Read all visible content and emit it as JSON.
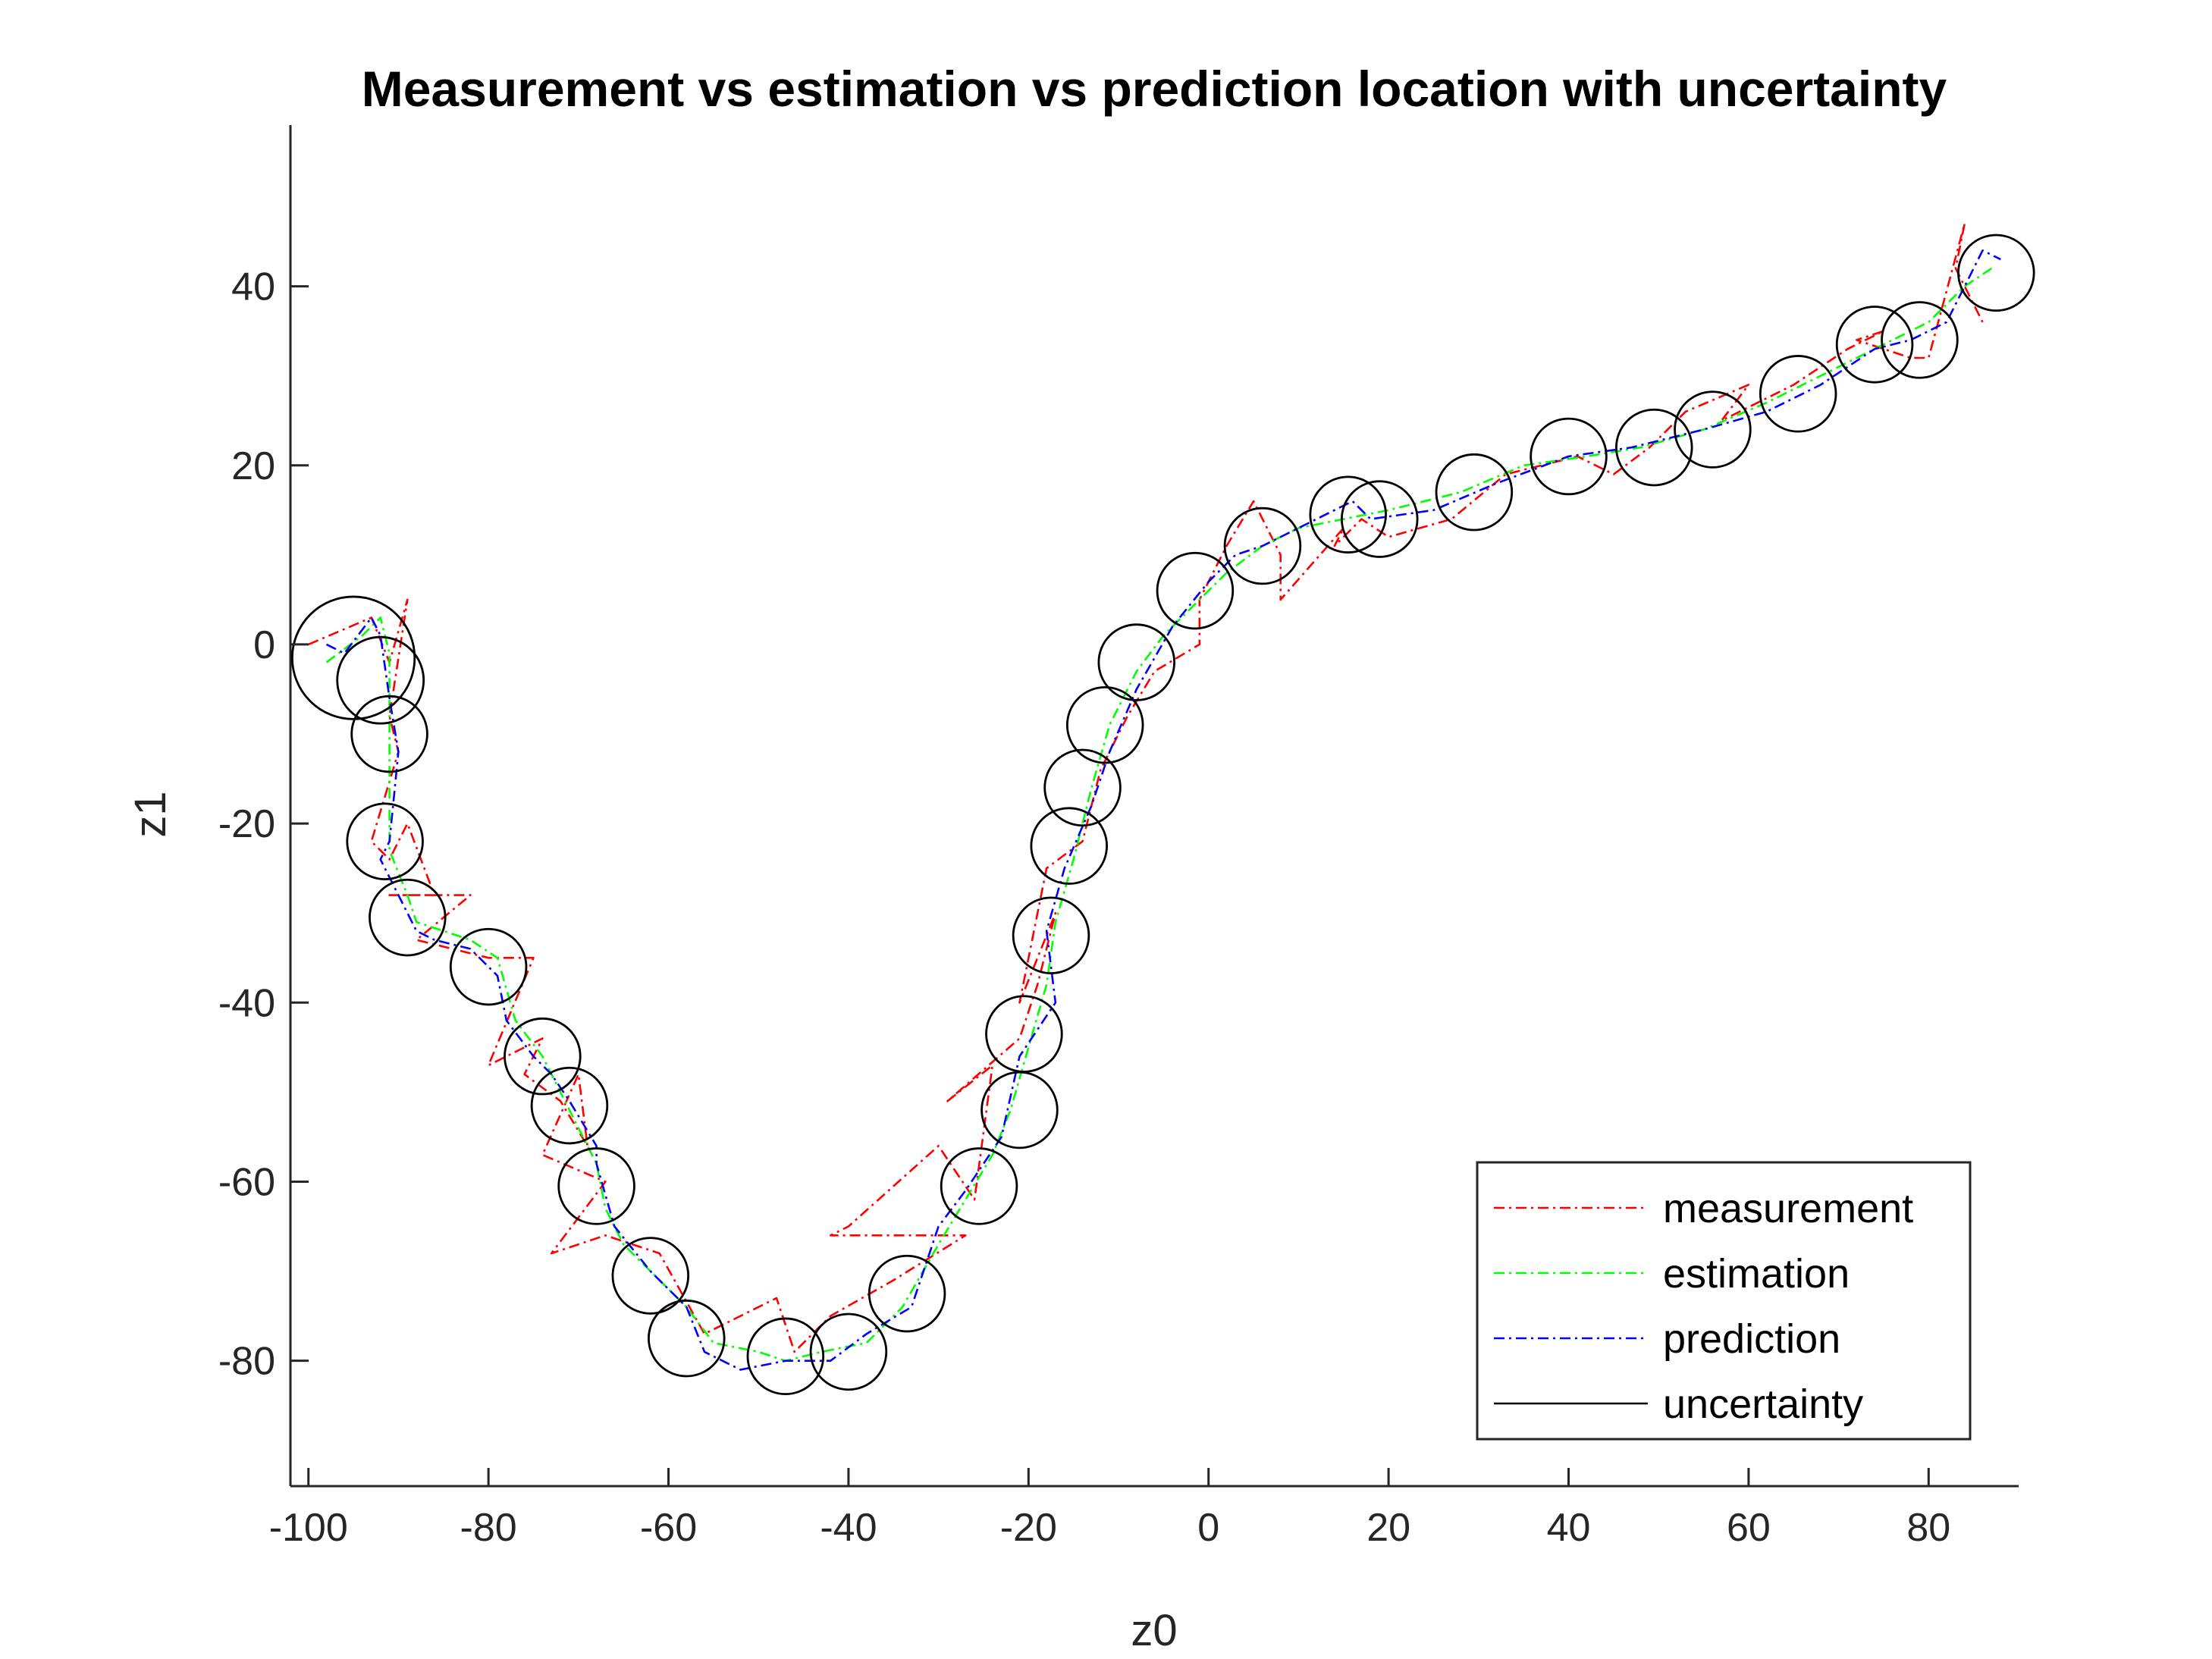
{
  "chart_data": {
    "type": "line",
    "title": "Measurement vs estimation vs prediction location with uncertainty",
    "xlabel": "z0",
    "ylabel": "z1",
    "xlim": [
      -102,
      90
    ],
    "ylim": [
      -94,
      58
    ],
    "xticks": [
      -100,
      -80,
      -60,
      -40,
      -20,
      0,
      20,
      40,
      60,
      80
    ],
    "yticks": [
      -80,
      -60,
      -40,
      -20,
      0,
      20,
      40
    ],
    "legend_position": "bottom-right",
    "series": [
      {
        "name": "measurement",
        "color": "#ff0000",
        "style": "dash-dot",
        "points": [
          [
            -100,
            0
          ],
          [
            -93,
            3
          ],
          [
            -91,
            -2
          ],
          [
            -89,
            5
          ],
          [
            -91,
            -8
          ],
          [
            -90,
            -12
          ],
          [
            -93,
            -22
          ],
          [
            -91,
            -24
          ],
          [
            -89,
            -20
          ],
          [
            -86,
            -28
          ],
          [
            -91,
            -28
          ],
          [
            -82,
            -28
          ],
          [
            -88,
            -33
          ],
          [
            -80,
            -35
          ],
          [
            -75,
            -35
          ],
          [
            -80,
            -47
          ],
          [
            -74,
            -44
          ],
          [
            -76,
            -48
          ],
          [
            -72,
            -51
          ],
          [
            -69,
            -56
          ],
          [
            -70,
            -48
          ],
          [
            -74,
            -57
          ],
          [
            -67,
            -60
          ],
          [
            -73,
            -68
          ],
          [
            -67,
            -66
          ],
          [
            -61,
            -68
          ],
          [
            -56,
            -77
          ],
          [
            -48,
            -73
          ],
          [
            -46,
            -79
          ],
          [
            -42,
            -75
          ],
          [
            -35,
            -71
          ],
          [
            -27,
            -66
          ],
          [
            -40,
            -66
          ],
          [
            -42,
            -66
          ],
          [
            -40,
            -65
          ],
          [
            -30,
            -56
          ],
          [
            -26,
            -62
          ],
          [
            -24,
            -47
          ],
          [
            -29,
            -51
          ],
          [
            -21,
            -44
          ],
          [
            -19,
            -38
          ],
          [
            -17,
            -30
          ],
          [
            -21,
            -40
          ],
          [
            -18,
            -25
          ],
          [
            -14,
            -22
          ],
          [
            -12,
            -14
          ],
          [
            -9,
            -8
          ],
          [
            -6,
            -3
          ],
          [
            -1,
            0
          ],
          [
            -1,
            5
          ],
          [
            2,
            11
          ],
          [
            5,
            16
          ],
          [
            8,
            10
          ],
          [
            8,
            5
          ],
          [
            15,
            13
          ],
          [
            14,
            11
          ],
          [
            17,
            14
          ],
          [
            20,
            12
          ],
          [
            27,
            14
          ],
          [
            33,
            19
          ],
          [
            41,
            21
          ],
          [
            45,
            19
          ],
          [
            49,
            22
          ],
          [
            53,
            26
          ],
          [
            60,
            29
          ],
          [
            57,
            25
          ],
          [
            65,
            29
          ],
          [
            71,
            33
          ],
          [
            75,
            35
          ],
          [
            72,
            34
          ],
          [
            78,
            32
          ],
          [
            80,
            32
          ],
          [
            84,
            47
          ],
          [
            83,
            42
          ],
          [
            86,
            36
          ]
        ]
      },
      {
        "name": "estimation",
        "color": "#00ff00",
        "style": "dash-dot",
        "points": [
          [
            -98,
            -2
          ],
          [
            -94,
            1
          ],
          [
            -92,
            3
          ],
          [
            -91,
            -1
          ],
          [
            -91,
            -8
          ],
          [
            -91,
            -15
          ],
          [
            -91,
            -20
          ],
          [
            -91,
            -23
          ],
          [
            -89,
            -28
          ],
          [
            -88,
            -31
          ],
          [
            -85,
            -32
          ],
          [
            -82,
            -33
          ],
          [
            -79,
            -35
          ],
          [
            -77,
            -42
          ],
          [
            -74,
            -46
          ],
          [
            -72,
            -50
          ],
          [
            -70,
            -54
          ],
          [
            -68,
            -58
          ],
          [
            -67,
            -63
          ],
          [
            -65,
            -67
          ],
          [
            -62,
            -70
          ],
          [
            -58,
            -74
          ],
          [
            -55,
            -78
          ],
          [
            -50,
            -79
          ],
          [
            -47,
            -80
          ],
          [
            -43,
            -79
          ],
          [
            -38,
            -78
          ],
          [
            -34,
            -74
          ],
          [
            -30,
            -67
          ],
          [
            -27,
            -62
          ],
          [
            -24,
            -57
          ],
          [
            -22,
            -52
          ],
          [
            -20,
            -45
          ],
          [
            -18,
            -38
          ],
          [
            -17,
            -31
          ],
          [
            -15,
            -24
          ],
          [
            -13,
            -16
          ],
          [
            -11,
            -9
          ],
          [
            -8,
            -3
          ],
          [
            -5,
            1
          ],
          [
            -1,
            5
          ],
          [
            2,
            8
          ],
          [
            6,
            11
          ],
          [
            10,
            13
          ],
          [
            15,
            14
          ],
          [
            20,
            15
          ],
          [
            28,
            17
          ],
          [
            35,
            20
          ],
          [
            42,
            21
          ],
          [
            48,
            22
          ],
          [
            55,
            24
          ],
          [
            62,
            27
          ],
          [
            68,
            30
          ],
          [
            74,
            33
          ],
          [
            80,
            36
          ],
          [
            84,
            40
          ],
          [
            87,
            42
          ]
        ]
      },
      {
        "name": "prediction",
        "color": "#0000ff",
        "style": "dash-dot",
        "points": [
          [
            -98,
            0
          ],
          [
            -96,
            -1
          ],
          [
            -93,
            3
          ],
          [
            -92,
            1
          ],
          [
            -91,
            -6
          ],
          [
            -90,
            -12
          ],
          [
            -91,
            -22
          ],
          [
            -92,
            -24
          ],
          [
            -90,
            -28
          ],
          [
            -88,
            -32
          ],
          [
            -86,
            -33
          ],
          [
            -82,
            -34
          ],
          [
            -79,
            -37
          ],
          [
            -78,
            -42
          ],
          [
            -75,
            -46
          ],
          [
            -73,
            -48
          ],
          [
            -71,
            -51
          ],
          [
            -68,
            -56
          ],
          [
            -68,
            -58
          ],
          [
            -66,
            -65
          ],
          [
            -62,
            -70
          ],
          [
            -58,
            -74
          ],
          [
            -56,
            -79
          ],
          [
            -52,
            -81
          ],
          [
            -47,
            -80
          ],
          [
            -42,
            -80
          ],
          [
            -38,
            -77
          ],
          [
            -33,
            -74
          ],
          [
            -30,
            -65
          ],
          [
            -27,
            -61
          ],
          [
            -23,
            -55
          ],
          [
            -21,
            -46
          ],
          [
            -17,
            -40
          ],
          [
            -18,
            -32
          ],
          [
            -16,
            -25
          ],
          [
            -13,
            -18
          ],
          [
            -11,
            -12
          ],
          [
            -8,
            -5
          ],
          [
            -4,
            2
          ],
          [
            0,
            7
          ],
          [
            3,
            10
          ],
          [
            6,
            11
          ],
          [
            10,
            13
          ],
          [
            16,
            16
          ],
          [
            18,
            14
          ],
          [
            25,
            15
          ],
          [
            32,
            18
          ],
          [
            40,
            21
          ],
          [
            47,
            22
          ],
          [
            55,
            24
          ],
          [
            62,
            26
          ],
          [
            68,
            29
          ],
          [
            74,
            33
          ],
          [
            78,
            34
          ],
          [
            82,
            36
          ],
          [
            84,
            40
          ],
          [
            86,
            44
          ],
          [
            88,
            43
          ]
        ]
      },
      {
        "name": "uncertainty",
        "color": "#000000",
        "style": "solid",
        "circles": [
          {
            "x": -95,
            "y": -1.5,
            "r": 6.8
          },
          {
            "x": -92,
            "y": -4,
            "r": 4.8
          },
          {
            "x": -91,
            "y": -10,
            "r": 4.2
          },
          {
            "x": -91.5,
            "y": -22,
            "r": 4.2
          },
          {
            "x": -89,
            "y": -30.5,
            "r": 4.2
          },
          {
            "x": -80,
            "y": -36,
            "r": 4.2
          },
          {
            "x": -74,
            "y": -46,
            "r": 4.2
          },
          {
            "x": -71,
            "y": -51.5,
            "r": 4.2
          },
          {
            "x": -68,
            "y": -60.5,
            "r": 4.2
          },
          {
            "x": -62,
            "y": -70.5,
            "r": 4.2
          },
          {
            "x": -58,
            "y": -77.5,
            "r": 4.2
          },
          {
            "x": -47,
            "y": -79.5,
            "r": 4.2
          },
          {
            "x": -40,
            "y": -79,
            "r": 4.2
          },
          {
            "x": -33.5,
            "y": -72.5,
            "r": 4.2
          },
          {
            "x": -25.5,
            "y": -60.5,
            "r": 4.2
          },
          {
            "x": -21,
            "y": -52,
            "r": 4.2
          },
          {
            "x": -20.5,
            "y": -43.5,
            "r": 4.2
          },
          {
            "x": -17.5,
            "y": -32.5,
            "r": 4.2
          },
          {
            "x": -15.5,
            "y": -22.5,
            "r": 4.2
          },
          {
            "x": -14,
            "y": -16,
            "r": 4.2
          },
          {
            "x": -11.5,
            "y": -9,
            "r": 4.2
          },
          {
            "x": -8,
            "y": -2,
            "r": 4.2
          },
          {
            "x": -1.5,
            "y": 6,
            "r": 4.2
          },
          {
            "x": 6,
            "y": 11,
            "r": 4.2
          },
          {
            "x": 15.5,
            "y": 14.5,
            "r": 4.2
          },
          {
            "x": 19,
            "y": 14,
            "r": 4.2
          },
          {
            "x": 29.5,
            "y": 17,
            "r": 4.2
          },
          {
            "x": 40,
            "y": 21,
            "r": 4.2
          },
          {
            "x": 49.5,
            "y": 22,
            "r": 4.2
          },
          {
            "x": 56,
            "y": 24,
            "r": 4.2
          },
          {
            "x": 65.5,
            "y": 28,
            "r": 4.2
          },
          {
            "x": 74,
            "y": 33.5,
            "r": 4.2
          },
          {
            "x": 79,
            "y": 34,
            "r": 4.2
          },
          {
            "x": 87.5,
            "y": 41.5,
            "r": 4.2
          }
        ]
      }
    ],
    "legend": [
      "measurement",
      "estimation",
      "prediction",
      "uncertainty"
    ]
  }
}
